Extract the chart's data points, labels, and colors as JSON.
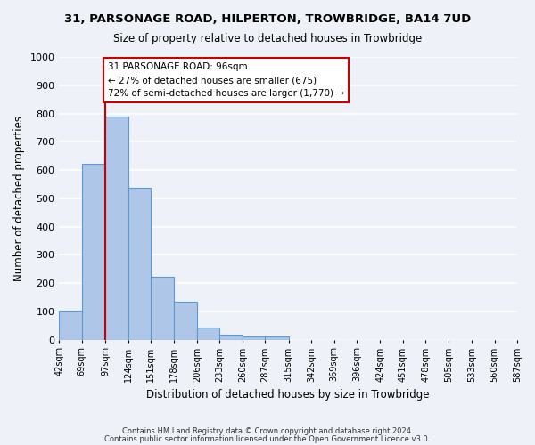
{
  "title": "31, PARSONAGE ROAD, HILPERTON, TROWBRIDGE, BA14 7UD",
  "subtitle": "Size of property relative to detached houses in Trowbridge",
  "xlabel": "Distribution of detached houses by size in Trowbridge",
  "ylabel": "Number of detached properties",
  "bar_values": [
    103,
    623,
    790,
    538,
    222,
    133,
    42,
    17,
    10,
    12,
    0,
    0,
    0,
    0,
    0,
    0,
    0,
    0,
    0,
    0
  ],
  "x_labels": [
    "42sqm",
    "69sqm",
    "97sqm",
    "124sqm",
    "151sqm",
    "178sqm",
    "206sqm",
    "233sqm",
    "260sqm",
    "287sqm",
    "315sqm",
    "342sqm",
    "369sqm",
    "396sqm",
    "424sqm",
    "451sqm",
    "478sqm",
    "505sqm",
    "533sqm",
    "560sqm",
    "587sqm"
  ],
  "bin_edges": [
    42,
    69,
    97,
    124,
    151,
    178,
    206,
    233,
    260,
    287,
    315,
    342,
    369,
    396,
    424,
    451,
    478,
    505,
    533,
    560,
    587
  ],
  "bar_color": "#aec6e8",
  "bar_edge_color": "#5b9bd5",
  "vline_x": 97,
  "annotation_text": "31 PARSONAGE ROAD: 96sqm\n← 27% of detached houses are smaller (675)\n72% of semi-detached houses are larger (1,770) →",
  "annotation_box_color": "#ffffff",
  "annotation_border_color": "#cc0000",
  "vline_color": "#cc0000",
  "ylim": [
    0,
    1000
  ],
  "yticks": [
    0,
    100,
    200,
    300,
    400,
    500,
    600,
    700,
    800,
    900,
    1000
  ],
  "footer_line1": "Contains HM Land Registry data © Crown copyright and database right 2024.",
  "footer_line2": "Contains public sector information licensed under the Open Government Licence v3.0.",
  "bg_color": "#eef2f8",
  "plot_bg_color": "#eef2f8",
  "grid_color": "#ffffff"
}
